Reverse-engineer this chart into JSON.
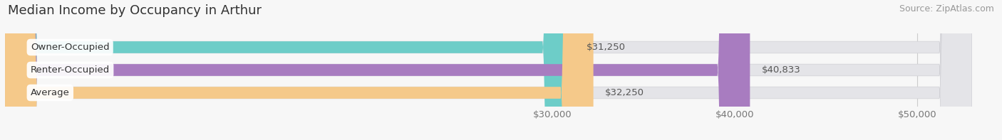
{
  "title": "Median Income by Occupancy in Arthur",
  "source": "Source: ZipAtlas.com",
  "categories": [
    "Owner-Occupied",
    "Renter-Occupied",
    "Average"
  ],
  "values": [
    31250,
    40833,
    32250
  ],
  "bar_colors": [
    "#6dcdc8",
    "#a87cc0",
    "#f5c98a"
  ],
  "bar_bg_color": "#e4e4e8",
  "value_labels": [
    "$31,250",
    "$40,833",
    "$32,250"
  ],
  "xmin": 0,
  "xlim": [
    0,
    53000
  ],
  "xstart": 0,
  "xticks": [
    30000,
    40000,
    50000
  ],
  "xtick_labels": [
    "$30,000",
    "$40,000",
    "$50,000"
  ],
  "title_fontsize": 13,
  "source_fontsize": 9,
  "label_fontsize": 9.5,
  "value_fontsize": 9.5,
  "bar_height": 0.52,
  "background_color": "#f7f7f7",
  "bar_order": [
    2,
    1,
    0
  ]
}
